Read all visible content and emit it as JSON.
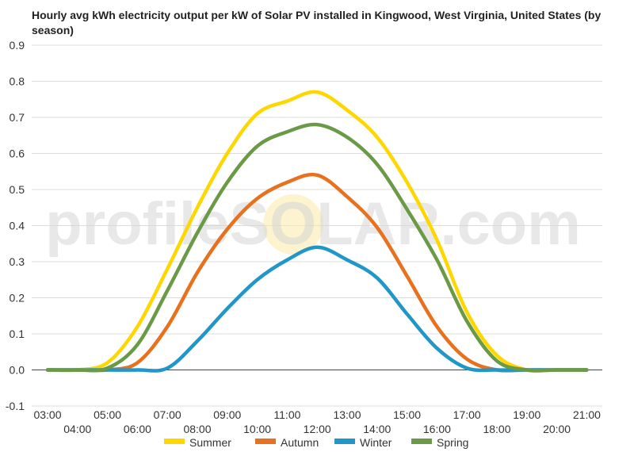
{
  "chart_data": {
    "type": "line",
    "title": "Hourly avg kWh electricity output per kW of Solar PV installed in Kingwood, West Virginia, United States (by season)",
    "xlabel": "",
    "ylabel": "",
    "ylim": [
      -0.1,
      0.9
    ],
    "yticks": [
      "-0.1",
      "0.0",
      "0.1",
      "0.2",
      "0.3",
      "0.4",
      "0.5",
      "0.6",
      "0.7",
      "0.8",
      "0.9"
    ],
    "x": [
      "03:00",
      "04:00",
      "05:00",
      "06:00",
      "07:00",
      "08:00",
      "09:00",
      "10:00",
      "11:00",
      "12:00",
      "13:00",
      "14:00",
      "15:00",
      "16:00",
      "17:00",
      "18:00",
      "19:00",
      "20:00",
      "21:00"
    ],
    "grid": true,
    "legend": "bottom",
    "series": [
      {
        "name": "Summer",
        "color": "#FFD700",
        "values": [
          0.0,
          0.0,
          0.02,
          0.12,
          0.28,
          0.45,
          0.6,
          0.71,
          0.745,
          0.77,
          0.72,
          0.645,
          0.52,
          0.36,
          0.16,
          0.04,
          0.0,
          0.0,
          0.0
        ]
      },
      {
        "name": "Autumn",
        "color": "#E8711E",
        "values": [
          0.0,
          0.0,
          0.0,
          0.02,
          0.12,
          0.27,
          0.39,
          0.475,
          0.52,
          0.54,
          0.48,
          0.395,
          0.26,
          0.12,
          0.03,
          0.0,
          0.0,
          0.0,
          0.0
        ]
      },
      {
        "name": "Winter",
        "color": "#2196C8",
        "values": [
          0.0,
          0.0,
          0.0,
          0.0,
          0.005,
          0.08,
          0.17,
          0.25,
          0.305,
          0.34,
          0.305,
          0.255,
          0.155,
          0.06,
          0.005,
          0.0,
          0.0,
          0.0,
          0.0
        ]
      },
      {
        "name": "Spring",
        "color": "#6B9A47",
        "values": [
          0.0,
          0.0,
          0.005,
          0.07,
          0.22,
          0.38,
          0.52,
          0.62,
          0.66,
          0.68,
          0.645,
          0.57,
          0.445,
          0.305,
          0.135,
          0.025,
          0.0,
          0.0,
          0.0
        ]
      }
    ]
  },
  "watermark": "profileSOLAR.com"
}
